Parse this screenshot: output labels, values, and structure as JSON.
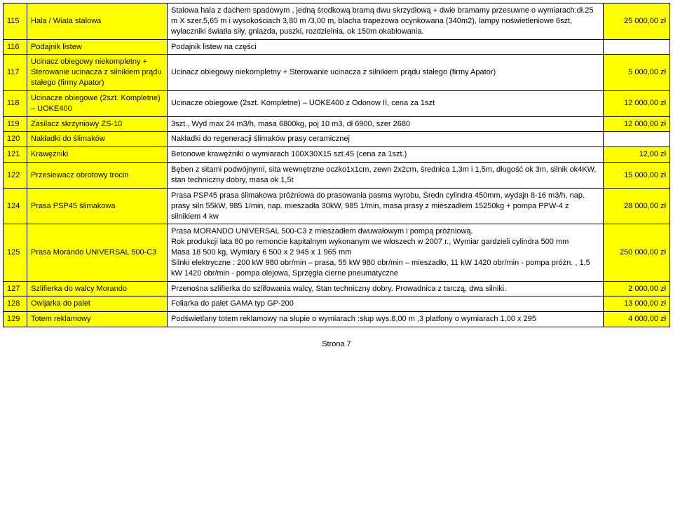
{
  "colors": {
    "highlight": "#ffff00",
    "border": "#000000",
    "background": "#ffffff",
    "text": "#000000"
  },
  "font": {
    "family": "Arial, sans-serif",
    "size_pt": 11
  },
  "table": {
    "columns": [
      "num",
      "name",
      "desc",
      "price"
    ],
    "rows": [
      {
        "num": "115",
        "name": "Hala / Wiata stalowa",
        "desc": "Stalowa hala z dachem spadowym , jedną środkową bramą dwu skrzydłową + dwie  bramamy przesuwne o wymiarach:dł.25 m  X szer.5,65 m i wysokościach 3,80 m /3,00 m, blacha trapezowa ocynkowana (340m2), lampy noświetleniowe 6szt, wyłaczniki światła siły, gniazda, puszki, rozdzielnia, ok 150m okablowania.",
        "price": "25 000,00 zł",
        "yellow": {
          "num": true,
          "name": true,
          "desc": false,
          "price": true
        }
      },
      {
        "num": "116",
        "name": "Podajnik listew",
        "desc": "Podajnik listew na części",
        "price": "",
        "yellow": {
          "num": true,
          "name": true,
          "desc": false,
          "price": false
        }
      },
      {
        "num": "117",
        "name": "Ucinacz obiegowy niekompletny + Sterowanie ucinacza z silnikiem prądu stałego (firmy Apator)",
        "desc": "Ucinacz obiegowy niekompletny + Sterowanie ucinacza z silnikiem prądu stałego (firmy Apator)",
        "price": "5 000,00 zł",
        "yellow": {
          "num": true,
          "name": true,
          "desc": false,
          "price": true
        }
      },
      {
        "num": "118",
        "name": "Ucinacze obiegowe (2szt. Kompletne) – UOKE400",
        "desc": "Ucinacze obiegowe (2szt. Kompletne) – UOKE400 z Odonow II, cena za 1szt",
        "price": "12 000,00 zł",
        "yellow": {
          "num": true,
          "name": true,
          "desc": false,
          "price": true
        }
      },
      {
        "num": "119",
        "name": "Zasilacz skrzyniowy ZS-10",
        "desc": "3szt., Wyd max 24 m3/h, masa 6800kg, poj 10 m3, dł 6900, szer 2680",
        "price": "12 000,00 zł",
        "yellow": {
          "num": true,
          "name": true,
          "desc": false,
          "price": true
        }
      },
      {
        "num": "120",
        "name": "Nakładki do ślimaków",
        "desc": "Nakładki do regeneracji ślimaków prasy ceramicznej",
        "price": "",
        "yellow": {
          "num": true,
          "name": true,
          "desc": false,
          "price": false
        }
      },
      {
        "num": "121",
        "name": "Krawężniki",
        "desc": "Betonowe krawężniki o wymiarach 100X30X15  szt.45 (cena za 1szt.)",
        "price": "12,00 zł",
        "yellow": {
          "num": true,
          "name": true,
          "desc": false,
          "price": true
        }
      },
      {
        "num": "122",
        "name": "Przesiewacz obrotowy trocin",
        "desc": "Bęben z sitami podwójnymi, sita wewnętrzne oczko1x1cm, zewn 2x2cm, średnica 1,3m i 1,5m, długość ok 3m, silnik ok4KW, stan techniczny dobry, masa ok 1,5t",
        "price": "15 000,00 zł",
        "yellow": {
          "num": true,
          "name": true,
          "desc": false,
          "price": true
        }
      },
      {
        "num": "124",
        "name": "Prasa PSP45 ślimakowa",
        "desc": "Prasa PSP45 prasa ślimakowa próżniowa do prasowania pasma wyrobu, Średn cylindra 450mm, wydajn 8-16 m3/h,  nap. prasy siln 55kW, 985 1/min, nap. mieszadła 30kW, 985 1/min, masa prasy z mieszadłem 15250kg + pompa PPW-4 z silnikiem 4 kw",
        "price": "28 000,00 zł",
        "yellow": {
          "num": true,
          "name": true,
          "desc": false,
          "price": true
        }
      },
      {
        "num": "125",
        "name": "Prasa Morando UNIVERSAL 500-C3",
        "desc": "Prasa MORANDO UNIVERSAL 500-C3 z mieszadłem dwuwałowym i pompą próżniową.\nRok produkcji lata 80 po remoncie kapitalnym wykonanym we włoszech w 2007 r., Wymiar gardzieli cylindra 500 mm\nMasa 18 500 kg, Wymiary 6 500 x 2 945 x 1 965 mm\nSilnki elektryczne : 200 kW 980 obr/min – prasa, 55 kW 980 obr/min – mieszadło, 11 kW 1420 obr/min - pompa próżn. , 1,5 kW 1420 obr/min - pompa olejowa, Sprzęgła cierne pneumatyczne",
        "price": "250 000,00 zł",
        "yellow": {
          "num": true,
          "name": true,
          "desc": false,
          "price": true
        }
      },
      {
        "num": "127",
        "name": "Szlifierka do walcy Morando",
        "desc": "Przenośna szlifierka do szlifowania walcy, Stan techniczny dobry. Prowadnica z tarczą, dwa silniki.",
        "price": "2 000,00 zł",
        "yellow": {
          "num": true,
          "name": true,
          "desc": false,
          "price": true
        }
      },
      {
        "num": "128",
        "name": "Owijarka do palet",
        "desc": "Foliarka do palet GAMA typ GP-200",
        "price": "13 000,00 zł",
        "yellow": {
          "num": true,
          "name": true,
          "desc": false,
          "price": true
        }
      },
      {
        "num": "129",
        "name": "Totem reklamowy",
        "desc": "Podświetlany totem reklamowy na słupie o wymiarach :słup wys.8,00 m ,3 platfony o wymiarach 1,00 x 295",
        "price": "4 000,00 zł",
        "yellow": {
          "num": true,
          "name": true,
          "desc": false,
          "price": true
        }
      }
    ]
  },
  "footer": "Strona 7"
}
